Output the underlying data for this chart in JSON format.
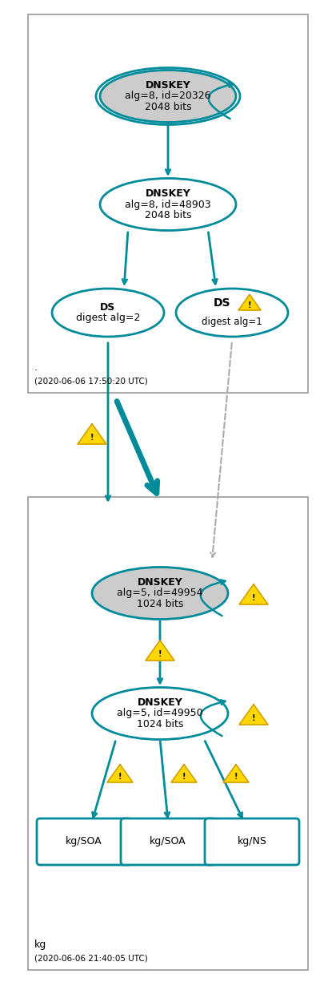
{
  "fig_width": 4.2,
  "fig_height": 12.35,
  "dpi": 100,
  "bg_color": "#ffffff",
  "teal": "#008B9B",
  "gray_fill": "#cccccc",
  "white_fill": "#ffffff",
  "panel1_label": ".",
  "panel1_ts": "(2020-06-06 17:50:20 UTC)",
  "panel2_label": "kg",
  "panel2_ts": "(2020-06-06 21:40:05 UTC)"
}
